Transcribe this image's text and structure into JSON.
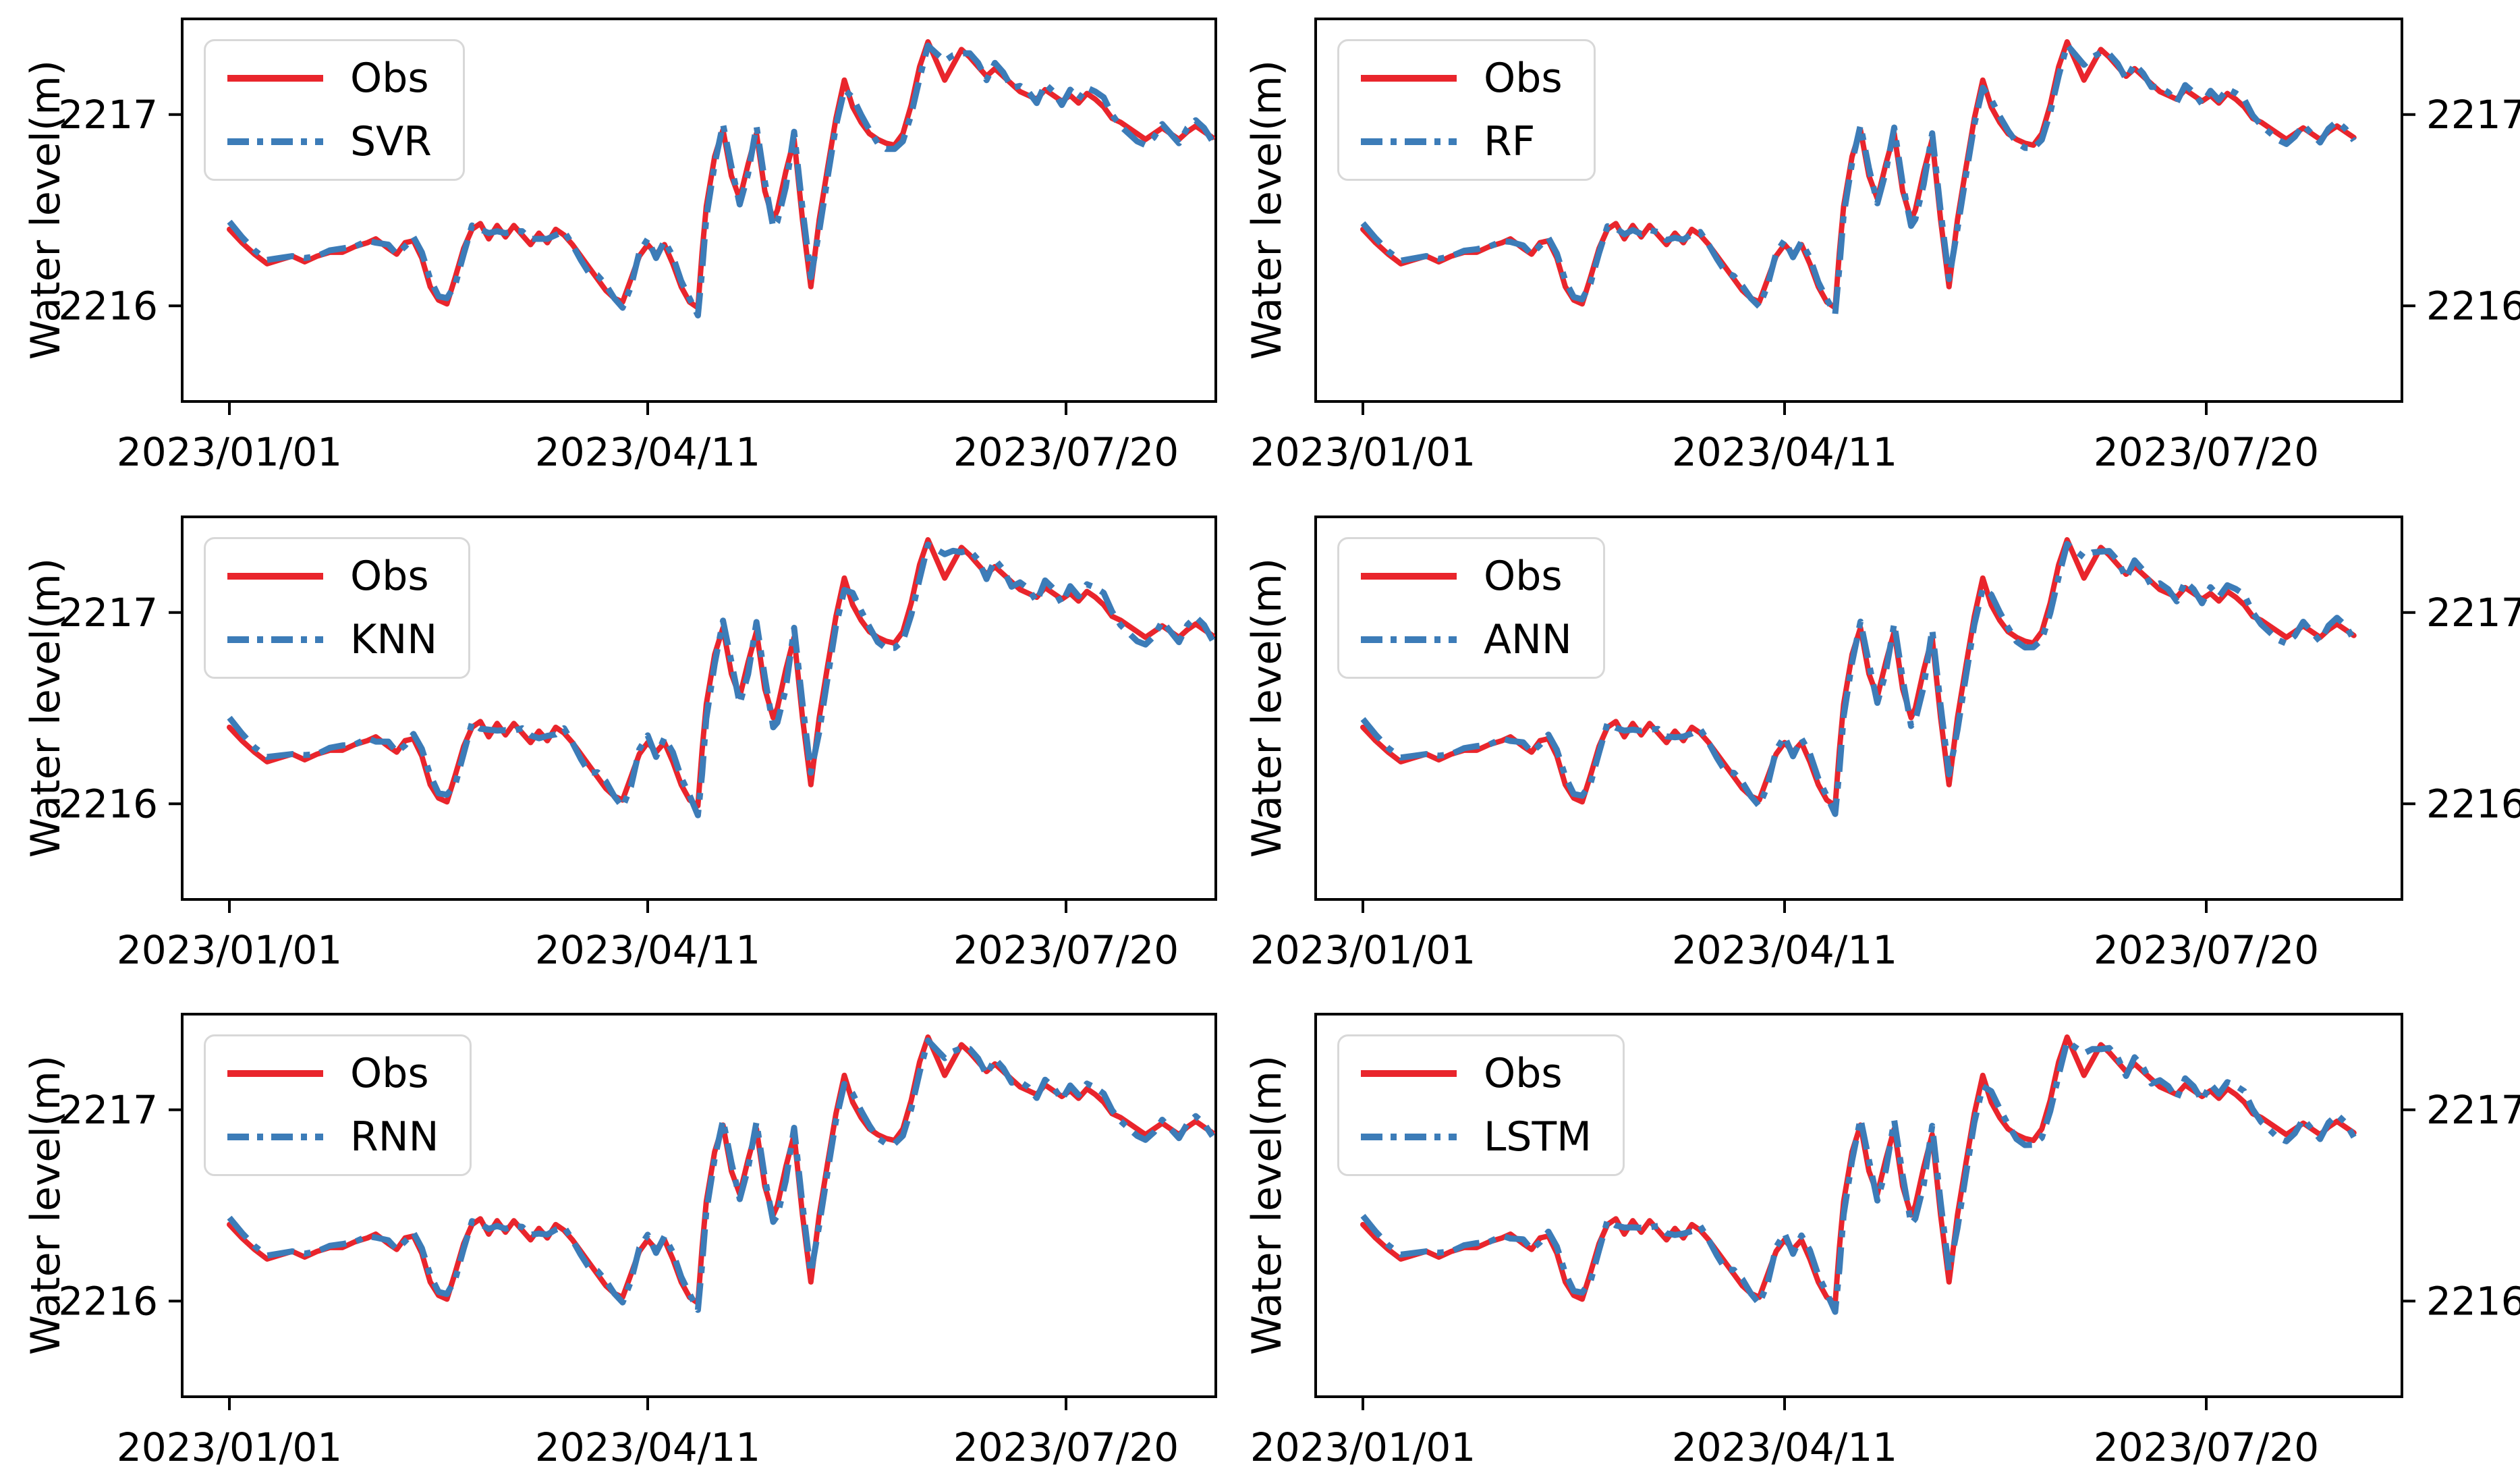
{
  "chart_data": {
    "type": "line",
    "ylabel": "Water level(m)",
    "x_tick_days": [
      0,
      100,
      200
    ],
    "x_tick_labels": [
      "2023/01/01",
      "2023/04/11",
      "2023/07/20"
    ],
    "y_tick_values": [
      2217,
      2216
    ],
    "y_tick_labels": [
      "2217",
      "2216"
    ],
    "ylim": [
      2215.5,
      2217.5
    ],
    "grid": false,
    "legend_position": "upper-left",
    "colors": {
      "obs": "#e9252c",
      "model": "#3c7cb8",
      "axis": "#000000"
    },
    "legend": {
      "obs_label": "Obs"
    },
    "days": [
      0,
      3,
      6,
      9,
      12,
      15,
      18,
      21,
      24,
      27,
      30,
      33,
      35,
      38,
      40,
      42,
      44,
      46,
      48,
      50,
      52,
      54,
      56,
      58,
      60,
      62,
      64,
      66,
      68,
      70,
      72,
      74,
      76,
      78,
      80,
      82,
      84,
      86,
      88,
      90,
      92,
      94,
      96,
      98,
      100,
      102,
      104,
      106,
      108,
      110,
      112,
      113,
      114,
      116,
      118,
      120,
      122,
      124,
      126,
      128,
      130,
      131,
      133,
      135,
      137,
      139,
      141,
      143,
      145,
      147,
      149,
      151,
      153,
      155,
      157,
      159,
      161,
      163,
      165,
      167,
      169,
      171,
      173,
      175,
      177,
      179,
      181,
      183,
      185,
      187,
      189,
      191,
      193,
      195,
      197,
      199,
      201,
      203,
      205,
      207,
      209,
      211,
      213,
      215,
      217,
      219,
      221,
      223,
      225,
      227,
      229,
      231,
      233,
      235
    ],
    "obs": [
      2216.4,
      2216.33,
      2216.27,
      2216.22,
      2216.24,
      2216.26,
      2216.23,
      2216.26,
      2216.28,
      2216.28,
      2216.31,
      2216.33,
      2216.35,
      2216.3,
      2216.27,
      2216.33,
      2216.34,
      2216.25,
      2216.1,
      2216.03,
      2216.01,
      2216.15,
      2216.3,
      2216.4,
      2216.43,
      2216.35,
      2216.42,
      2216.36,
      2216.42,
      2216.37,
      2216.32,
      2216.38,
      2216.33,
      2216.4,
      2216.37,
      2216.32,
      2216.26,
      2216.2,
      2216.14,
      2216.08,
      2216.04,
      2216.02,
      2216.14,
      2216.26,
      2216.32,
      2216.27,
      2216.32,
      2216.22,
      2216.1,
      2216.02,
      2215.99,
      2216.28,
      2216.52,
      2216.78,
      2216.92,
      2216.68,
      2216.56,
      2216.74,
      2216.9,
      2216.6,
      2216.45,
      2216.5,
      2216.7,
      2216.87,
      2216.45,
      2216.1,
      2216.45,
      2216.72,
      2216.98,
      2217.18,
      2217.04,
      2216.96,
      2216.9,
      2216.87,
      2216.85,
      2216.84,
      2216.9,
      2217.05,
      2217.25,
      2217.38,
      2217.28,
      2217.18,
      2217.26,
      2217.34,
      2217.3,
      2217.25,
      2217.2,
      2217.24,
      2217.2,
      2217.16,
      2217.12,
      2217.1,
      2217.08,
      2217.13,
      2217.1,
      2217.07,
      2217.1,
      2217.06,
      2217.11,
      2217.08,
      2217.04,
      2216.98,
      2216.96,
      2216.93,
      2216.9,
      2216.87,
      2216.9,
      2216.93,
      2216.9,
      2216.87,
      2216.91,
      2216.94,
      2216.91,
      2216.88
    ],
    "model_delta": [
      0.04,
      0.03,
      0.02,
      0.02,
      0.01,
      0.0,
      0.02,
      0.0,
      0.01,
      0.02,
      0.0,
      0.01,
      -0.02,
      0.02,
      0.0,
      -0.02,
      0.02,
      0.03,
      0.04,
      0.02,
      0.03,
      -0.04,
      -0.03,
      0.02,
      -0.03,
      0.03,
      -0.03,
      0.02,
      -0.03,
      0.02,
      0.03,
      -0.03,
      0.02,
      -0.03,
      0.02,
      0.0,
      -0.02,
      -0.03,
      0.02,
      0.03,
      0.0,
      -0.03,
      -0.04,
      0.02,
      0.03,
      -0.02,
      0.02,
      0.04,
      0.03,
      0.02,
      -0.04,
      -0.1,
      -0.06,
      -0.04,
      0.03,
      0.05,
      -0.03,
      -0.05,
      0.04,
      0.05,
      -0.04,
      -0.06,
      -0.08,
      0.04,
      0.06,
      0.05,
      -0.06,
      -0.05,
      -0.04,
      -0.05,
      0.05,
      0.04,
      0.02,
      -0.02,
      -0.03,
      -0.02,
      -0.04,
      -0.05,
      -0.06,
      -0.02,
      0.04,
      0.1,
      0.05,
      -0.02,
      0.02,
      0.02,
      -0.02,
      0.03,
      0.02,
      -0.02,
      0.03,
      0.02,
      -0.02,
      0.03,
      0.02,
      -0.02,
      0.03,
      0.02,
      0.03,
      0.04,
      0.05,
      0.02,
      -0.02,
      -0.03,
      -0.04,
      -0.03,
      -0.02,
      0.02,
      0.0,
      -0.02,
      0.02,
      0.03,
      0.02,
      -0.02
    ],
    "panels": [
      {
        "model": "SVR",
        "delta_scale": 1.0
      },
      {
        "model": "RF",
        "delta_scale": 0.8
      },
      {
        "model": "KNN",
        "delta_scale": 1.25
      },
      {
        "model": "ANN",
        "delta_scale": 1.08
      },
      {
        "model": "RNN",
        "delta_scale": 0.9
      },
      {
        "model": "LSTM",
        "delta_scale": 1.15
      }
    ]
  }
}
